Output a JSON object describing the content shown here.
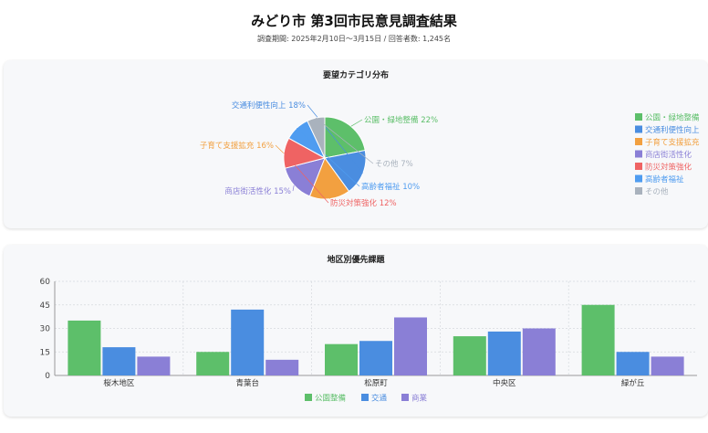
{
  "header": {
    "title": "みどり市 第3回市民意見調査結果",
    "subtitle": "調査期間: 2025年2月10日〜3月15日 / 回答者数: 1,245名"
  },
  "chart_data": [
    {
      "type": "pie",
      "title": "要望カテゴリ分布",
      "legend_position": "right",
      "slices": [
        {
          "label": "公園・緑地整備",
          "value": 22,
          "color": "#5dbf6a"
        },
        {
          "label": "交通利便性向上",
          "value": 18,
          "color": "#4a8de0"
        },
        {
          "label": "子育て支援拡充",
          "value": 16,
          "color": "#f2a040"
        },
        {
          "label": "商店街活性化",
          "value": 15,
          "color": "#8a7fd6"
        },
        {
          "label": "防災対策強化",
          "value": 12,
          "color": "#ef6363"
        },
        {
          "label": "高齢者福祉",
          "value": 10,
          "color": "#4f9cf0"
        },
        {
          "label": "その他",
          "value": 7,
          "color": "#a9b2bd"
        }
      ],
      "slice_labels": [
        "公園・緑地整備 22%",
        "交通利便性向上 18%",
        "子育て支援拡充 16%",
        "商店街活性化 15%",
        "防災対策強化 12%",
        "高齢者福祉 10%",
        "その他 7%"
      ]
    },
    {
      "type": "bar",
      "title": "地区別優先課題",
      "categories": [
        "桜木地区",
        "青葉台",
        "松原町",
        "中央区",
        "緑が丘"
      ],
      "series": [
        {
          "name": "公園整備",
          "values": [
            35,
            15,
            20,
            25,
            45
          ],
          "color": "#5dbf6a"
        },
        {
          "name": "交通",
          "values": [
            18,
            42,
            22,
            28,
            15
          ],
          "color": "#4a8de0"
        },
        {
          "name": "商業",
          "values": [
            12,
            10,
            37,
            30,
            12
          ],
          "color": "#8a7fd6"
        }
      ],
      "ylim": [
        0,
        60
      ],
      "yticks": [
        0,
        15,
        30,
        45,
        60
      ],
      "grid": true,
      "legend_position": "bottom"
    }
  ]
}
